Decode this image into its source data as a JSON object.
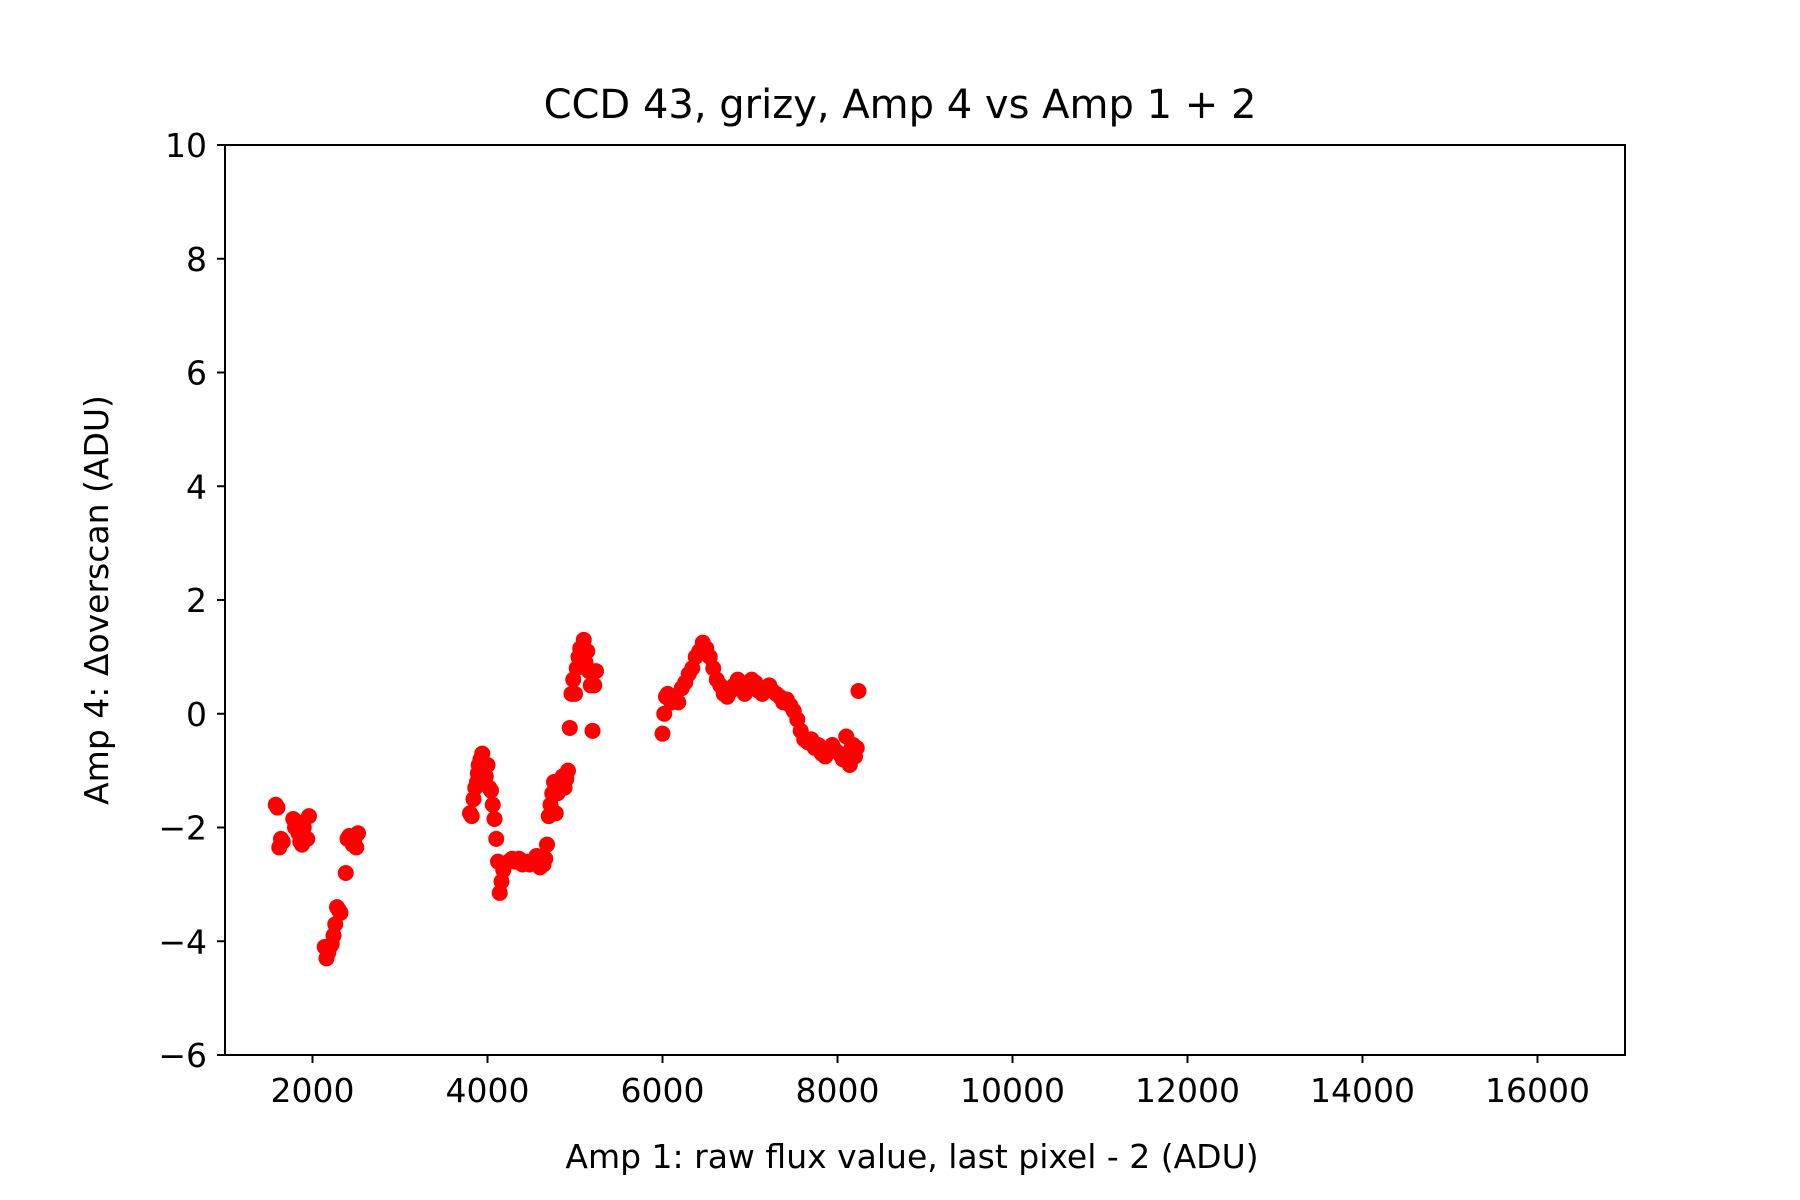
{
  "chart_data": {
    "type": "scatter",
    "title": "CCD 43, grizy, Amp 4 vs Amp 1 + 2",
    "xlabel": "Amp 1: raw flux value, last pixel - 2 (ADU)",
    "ylabel": "Amp 4: Δoverscan (ADU)",
    "xlim": [
      1000,
      17000
    ],
    "ylim": [
      -6,
      10
    ],
    "xticks": [
      2000,
      4000,
      6000,
      8000,
      10000,
      12000,
      14000,
      16000
    ],
    "xtick_labels": [
      "2000",
      "4000",
      "6000",
      "8000",
      "10000",
      "12000",
      "14000",
      "16000"
    ],
    "yticks": [
      -6,
      -4,
      -2,
      0,
      2,
      4,
      6,
      8,
      10
    ],
    "ytick_labels": [
      "−6",
      "−4",
      "−2",
      "0",
      "2",
      "4",
      "6",
      "8",
      "10"
    ],
    "grid": false,
    "marker_color": "#ff0000",
    "series": [
      {
        "x": [
          1580,
          1600,
          1620,
          1640,
          1650,
          1660,
          1780,
          1800,
          1820,
          1840,
          1860,
          1880,
          1900,
          1920,
          1940,
          1960,
          2140,
          2160,
          2180,
          2200,
          2220,
          2240,
          2260,
          2280,
          2300,
          2320,
          2380,
          2400,
          2420,
          2440,
          2460,
          2480,
          2500,
          2520,
          3800,
          3820,
          3840,
          3860,
          3880,
          3890,
          3900,
          3920,
          3940,
          3950,
          3960,
          3980,
          4000,
          4020,
          4040,
          4060,
          4080,
          4100,
          4120,
          4140,
          4160,
          4180,
          4200,
          4240,
          4280,
          4320,
          4360,
          4400,
          4440,
          4480,
          4520,
          4560,
          4600,
          4640,
          4660,
          4680,
          4700,
          4720,
          4740,
          4760,
          4780,
          4800,
          4820,
          4840,
          4860,
          4880,
          4900,
          4920,
          4940,
          4960,
          4980,
          5000,
          5020,
          5040,
          5060,
          5080,
          5100,
          5120,
          5140,
          5160,
          5180,
          5200,
          5220,
          5240,
          6000,
          6020,
          6040,
          6060,
          6100,
          6140,
          6180,
          6220,
          6260,
          6300,
          6340,
          6380,
          6420,
          6460,
          6500,
          6540,
          6580,
          6620,
          6660,
          6700,
          6740,
          6780,
          6820,
          6860,
          6900,
          6940,
          6980,
          7020,
          7060,
          7100,
          7140,
          7180,
          7220,
          7260,
          7300,
          7340,
          7380,
          7420,
          7460,
          7500,
          7540,
          7580,
          7620,
          7660,
          7700,
          7740,
          7780,
          7820,
          7860,
          7900,
          7940,
          7980,
          8020,
          8060,
          8100,
          8140,
          8160,
          8180,
          8200,
          8220,
          8240
        ],
        "y": [
          -1.6,
          -1.65,
          -2.35,
          -2.2,
          -2.25,
          -2.25,
          -1.85,
          -2.0,
          -1.9,
          -2.1,
          -2.25,
          -2.3,
          -2.0,
          -2.2,
          -2.2,
          -1.8,
          -4.1,
          -4.3,
          -4.2,
          -4.1,
          -4.05,
          -3.9,
          -3.7,
          -3.4,
          -3.45,
          -3.5,
          -2.8,
          -2.2,
          -2.15,
          -2.2,
          -2.3,
          -2.2,
          -2.35,
          -2.1,
          -1.75,
          -1.8,
          -1.5,
          -1.3,
          -1.2,
          -1.05,
          -0.9,
          -0.8,
          -0.7,
          -0.95,
          -1.2,
          -1.1,
          -0.9,
          -1.3,
          -1.35,
          -1.6,
          -1.85,
          -2.2,
          -2.6,
          -3.15,
          -2.95,
          -2.75,
          -2.65,
          -2.6,
          -2.55,
          -2.6,
          -2.55,
          -2.65,
          -2.6,
          -2.65,
          -2.6,
          -2.5,
          -2.7,
          -2.65,
          -2.55,
          -2.3,
          -1.8,
          -1.6,
          -1.4,
          -1.2,
          -1.75,
          -1.4,
          -1.3,
          -1.15,
          -1.1,
          -1.3,
          -1.15,
          -1.0,
          -0.25,
          0.35,
          0.6,
          0.35,
          0.8,
          1.0,
          1.15,
          1.0,
          1.3,
          0.9,
          1.1,
          0.75,
          0.5,
          -0.3,
          0.5,
          0.75,
          -0.35,
          0.0,
          0.3,
          0.35,
          0.2,
          0.3,
          0.2,
          0.45,
          0.55,
          0.7,
          0.8,
          1.0,
          1.1,
          1.25,
          1.15,
          1.0,
          0.8,
          0.6,
          0.5,
          0.35,
          0.3,
          0.4,
          0.5,
          0.6,
          0.55,
          0.35,
          0.45,
          0.6,
          0.55,
          0.4,
          0.35,
          0.45,
          0.5,
          0.4,
          0.35,
          0.3,
          0.2,
          0.25,
          0.15,
          0.05,
          -0.1,
          -0.3,
          -0.45,
          -0.5,
          -0.45,
          -0.6,
          -0.55,
          -0.7,
          -0.75,
          -0.6,
          -0.55,
          -0.65,
          -0.7,
          -0.8,
          -0.4,
          -0.9,
          -0.6,
          -0.55,
          -0.75,
          -0.6,
          0.4
        ]
      }
    ]
  }
}
